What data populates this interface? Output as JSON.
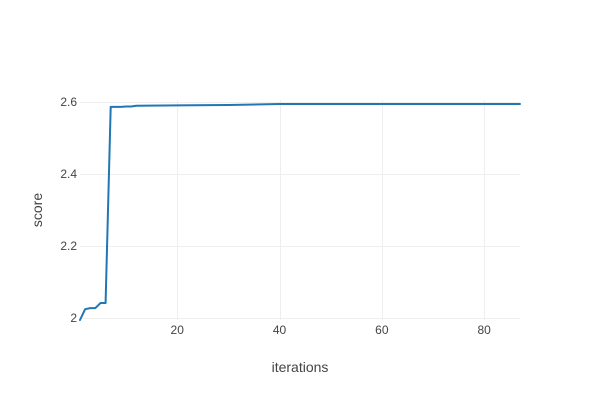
{
  "chart_data": {
    "type": "line",
    "xlabel": "iterations",
    "ylabel": "score",
    "xlim": [
      1,
      87
    ],
    "ylim": [
      1.995,
      2.605
    ],
    "x_ticks": [
      {
        "value": 20,
        "label": "20"
      },
      {
        "value": 40,
        "label": "40"
      },
      {
        "value": 60,
        "label": "60"
      },
      {
        "value": 80,
        "label": "80"
      }
    ],
    "y_ticks": [
      {
        "value": 2.0,
        "label": "2"
      },
      {
        "value": 2.2,
        "label": "2.2"
      },
      {
        "value": 2.4,
        "label": "2.4"
      },
      {
        "value": 2.6,
        "label": "2.6"
      }
    ],
    "grid": true,
    "legend": "none",
    "series": [
      {
        "color": "#1f77b4",
        "x": [
          1,
          2,
          3,
          4,
          5,
          6,
          7,
          8,
          9,
          10,
          11,
          12,
          20,
          30,
          40,
          50,
          60,
          70,
          80,
          87
        ],
        "y": [
          1.995,
          2.025,
          2.028,
          2.028,
          2.042,
          2.042,
          2.586,
          2.586,
          2.586,
          2.587,
          2.587,
          2.589,
          2.59,
          2.591,
          2.594,
          2.594,
          2.594,
          2.594,
          2.594,
          2.594
        ]
      }
    ]
  }
}
